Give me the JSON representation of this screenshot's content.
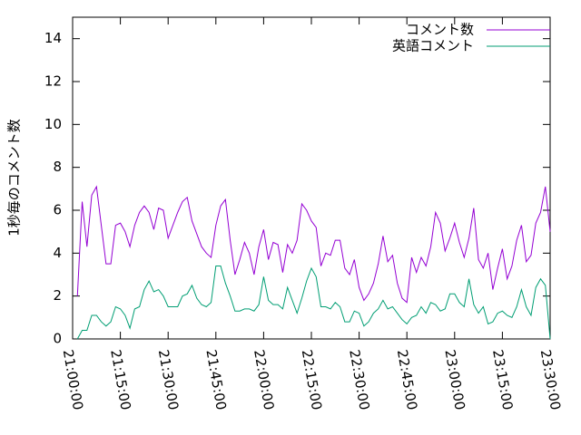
{
  "chart_data": {
    "type": "line",
    "ylabel": "1秒毎のコメント数",
    "x": [
      "21:01:30",
      "21:03:00",
      "21:04:30",
      "21:06:00",
      "21:07:30",
      "21:09:00",
      "21:10:30",
      "21:12:00",
      "21:13:30",
      "21:15:00",
      "21:16:30",
      "21:18:00",
      "21:19:30",
      "21:21:00",
      "21:22:30",
      "21:24:00",
      "21:25:30",
      "21:27:00",
      "21:28:30",
      "21:30:00",
      "21:31:30",
      "21:33:00",
      "21:34:30",
      "21:36:00",
      "21:37:30",
      "21:39:00",
      "21:40:30",
      "21:42:00",
      "21:43:30",
      "21:45:00",
      "21:46:30",
      "21:48:00",
      "21:49:30",
      "21:51:00",
      "21:52:30",
      "21:54:00",
      "21:55:30",
      "21:57:00",
      "21:58:30",
      "22:00:00",
      "22:01:30",
      "22:03:00",
      "22:04:30",
      "22:06:00",
      "22:07:30",
      "22:09:00",
      "22:10:30",
      "22:12:00",
      "22:13:30",
      "22:15:00",
      "22:16:30",
      "22:18:00",
      "22:19:30",
      "22:21:00",
      "22:22:30",
      "22:24:00",
      "22:25:30",
      "22:27:00",
      "22:28:30",
      "22:30:00",
      "22:31:30",
      "22:33:00",
      "22:34:30",
      "22:36:00",
      "22:37:30",
      "22:39:00",
      "22:40:30",
      "22:42:00",
      "22:43:30",
      "22:45:00",
      "22:46:30",
      "22:48:00",
      "22:49:30",
      "22:51:00",
      "22:52:30",
      "22:54:00",
      "22:55:30",
      "22:57:00",
      "22:58:30",
      "23:00:00",
      "23:01:30",
      "23:03:00",
      "23:04:30",
      "23:06:00",
      "23:07:30",
      "23:09:00",
      "23:10:30",
      "23:12:00",
      "23:13:30",
      "23:15:00",
      "23:16:30",
      "23:18:00",
      "23:19:30",
      "23:21:00",
      "23:22:30",
      "23:24:00",
      "23:25:30",
      "23:27:00",
      "23:28:30",
      "23:30:00"
    ],
    "series": [
      {
        "name": "コメント数",
        "color": "#9400d3",
        "values": [
          2.0,
          6.4,
          4.3,
          6.7,
          7.1,
          5.3,
          3.5,
          3.5,
          5.3,
          5.4,
          5.0,
          4.3,
          5.3,
          5.9,
          6.2,
          5.9,
          5.1,
          6.1,
          6.0,
          4.7,
          5.3,
          5.9,
          6.4,
          6.6,
          5.5,
          4.9,
          4.3,
          4.0,
          3.8,
          5.3,
          6.2,
          6.5,
          4.6,
          3.0,
          3.7,
          4.5,
          4.0,
          3.0,
          4.3,
          5.1,
          3.7,
          4.5,
          4.4,
          3.1,
          4.4,
          4.0,
          4.6,
          6.3,
          6.0,
          5.5,
          5.2,
          3.4,
          4.0,
          3.9,
          4.6,
          4.6,
          3.3,
          3.0,
          3.7,
          2.4,
          1.8,
          2.1,
          2.6,
          3.5,
          4.8,
          3.6,
          3.9,
          2.6,
          1.9,
          1.7,
          3.8,
          3.1,
          3.8,
          3.4,
          4.3,
          5.9,
          5.4,
          4.1,
          4.7,
          5.4,
          4.5,
          3.8,
          4.7,
          6.1,
          3.7,
          3.3,
          4.0,
          2.3,
          3.3,
          4.2,
          2.8,
          3.4,
          4.6,
          5.3,
          3.6,
          3.9,
          5.4,
          5.9,
          7.1,
          5.0
        ]
      },
      {
        "name": "英語コメント",
        "color": "#009e73",
        "values": [
          0.0,
          0.4,
          0.4,
          1.1,
          1.1,
          0.8,
          0.6,
          0.8,
          1.5,
          1.4,
          1.1,
          0.5,
          1.4,
          1.5,
          2.3,
          2.7,
          2.2,
          2.3,
          2.0,
          1.5,
          1.5,
          1.5,
          2.0,
          2.1,
          2.5,
          1.9,
          1.6,
          1.5,
          1.7,
          3.4,
          3.4,
          2.6,
          2.0,
          1.3,
          1.3,
          1.4,
          1.4,
          1.3,
          1.6,
          2.9,
          1.8,
          1.6,
          1.6,
          1.4,
          2.4,
          1.8,
          1.2,
          1.9,
          2.7,
          3.3,
          2.9,
          1.5,
          1.5,
          1.4,
          1.7,
          1.5,
          0.8,
          0.8,
          1.3,
          1.2,
          0.6,
          0.8,
          1.2,
          1.4,
          1.8,
          1.4,
          1.5,
          1.2,
          0.9,
          0.7,
          1.0,
          1.1,
          1.5,
          1.2,
          1.7,
          1.6,
          1.3,
          1.4,
          2.1,
          2.1,
          1.7,
          1.5,
          2.8,
          1.6,
          1.2,
          1.5,
          0.7,
          0.8,
          1.2,
          1.3,
          1.1,
          1.0,
          1.5,
          2.3,
          1.5,
          1.1,
          2.4,
          2.8,
          2.5,
          0.0
        ]
      }
    ],
    "xlim": [
      "21:00:00",
      "23:30:00"
    ],
    "xticks": [
      "21:00:00",
      "21:15:00",
      "21:30:00",
      "21:45:00",
      "22:00:00",
      "22:15:00",
      "22:30:00",
      "22:45:00",
      "23:00:00",
      "23:15:00",
      "23:30:00"
    ],
    "ylim": [
      0,
      15
    ],
    "yticks": [
      0,
      2,
      4,
      6,
      8,
      10,
      12,
      14
    ],
    "legend": "top-right"
  }
}
